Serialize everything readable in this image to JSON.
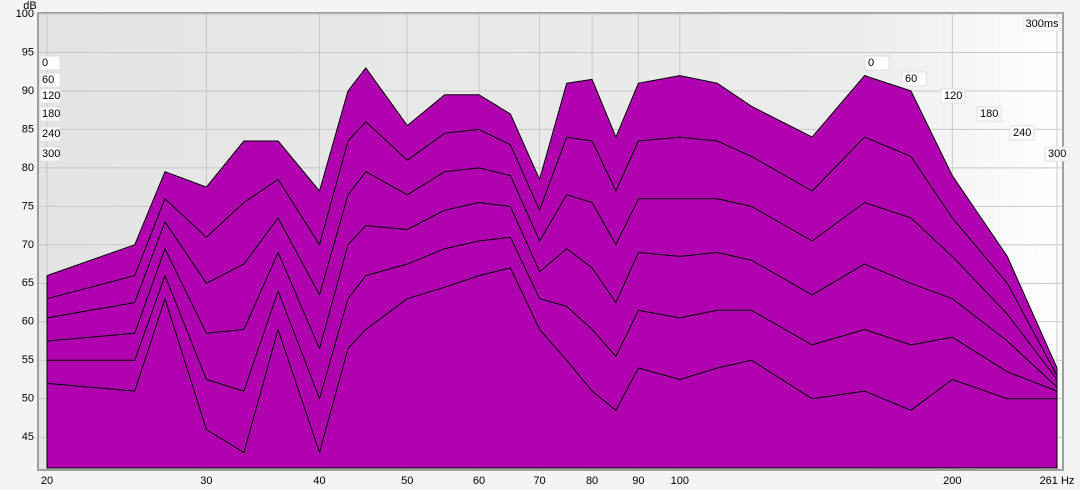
{
  "chart_data": {
    "type": "waterfall",
    "y_unit": "dB",
    "time_unit_label": "300ms",
    "time_labels": [
      0,
      60,
      120,
      180,
      240,
      300
    ],
    "x": [
      20,
      25,
      27,
      30,
      33,
      36,
      40,
      43,
      45,
      50,
      55,
      60,
      65,
      70,
      75,
      80,
      85,
      90,
      100,
      110,
      120,
      140,
      160,
      180,
      200,
      230,
      261
    ],
    "series": [
      {
        "name": "0",
        "color": "#b000b0",
        "values": [
          66,
          70,
          79.5,
          77.5,
          83.5,
          83.5,
          77,
          90,
          93,
          85.5,
          89.5,
          89.5,
          87,
          78.5,
          91,
          91.5,
          84,
          91,
          92,
          91,
          88,
          84,
          92,
          90,
          79,
          68.5,
          54
        ]
      },
      {
        "name": "60",
        "color": "#b000b0",
        "values": [
          63,
          66,
          76,
          71,
          75.5,
          78.5,
          70,
          83.5,
          86,
          81,
          84.5,
          85,
          83,
          74.5,
          84,
          83.5,
          77,
          83.5,
          84,
          83.5,
          81.5,
          77,
          84,
          81.5,
          73.5,
          65,
          53
        ]
      },
      {
        "name": "120",
        "color": "#b000b0",
        "values": [
          60.5,
          62.5,
          73,
          65,
          67.5,
          73.5,
          63.5,
          76.5,
          79.5,
          76.5,
          79.5,
          80,
          79,
          70.5,
          76.5,
          75.5,
          70,
          76,
          76,
          76,
          75,
          70.5,
          75.5,
          73.5,
          68.5,
          61,
          52.5
        ]
      },
      {
        "name": "180",
        "color": "#b000b0",
        "values": [
          57.5,
          58.5,
          69.5,
          58.5,
          59,
          69,
          56.5,
          70,
          72.5,
          72,
          74.5,
          75.5,
          75,
          66.5,
          69.5,
          67,
          62.5,
          69,
          68.5,
          69,
          68,
          63.5,
          67.5,
          65,
          63,
          57.5,
          51.5
        ]
      },
      {
        "name": "240",
        "color": "#b000b0",
        "values": [
          55,
          55,
          66,
          52.5,
          51,
          64,
          50,
          63,
          66,
          67.5,
          69.5,
          70.5,
          71,
          63,
          62,
          59,
          55.5,
          61.5,
          60.5,
          61.5,
          61.5,
          57,
          59,
          57,
          58,
          53.5,
          51
        ]
      },
      {
        "name": "300",
        "color": "#b000b0",
        "values": [
          52,
          51,
          63,
          46,
          43,
          59,
          43,
          56.5,
          59,
          63,
          64.5,
          66,
          67,
          59,
          55,
          51,
          48.5,
          54,
          52.5,
          54,
          55,
          50,
          51,
          48.5,
          52.5,
          50,
          50
        ]
      }
    ],
    "xlim": [
      20,
      261
    ],
    "xscale": "log",
    "xticks": [
      20,
      30,
      40,
      50,
      60,
      70,
      80,
      90,
      100,
      200,
      {
        "value": 261,
        "label": "261 Hz"
      }
    ],
    "ylim": [
      41,
      100
    ],
    "yticks": [
      45,
      50,
      55,
      60,
      65,
      70,
      75,
      80,
      85,
      90,
      95,
      100
    ],
    "grid": true
  }
}
